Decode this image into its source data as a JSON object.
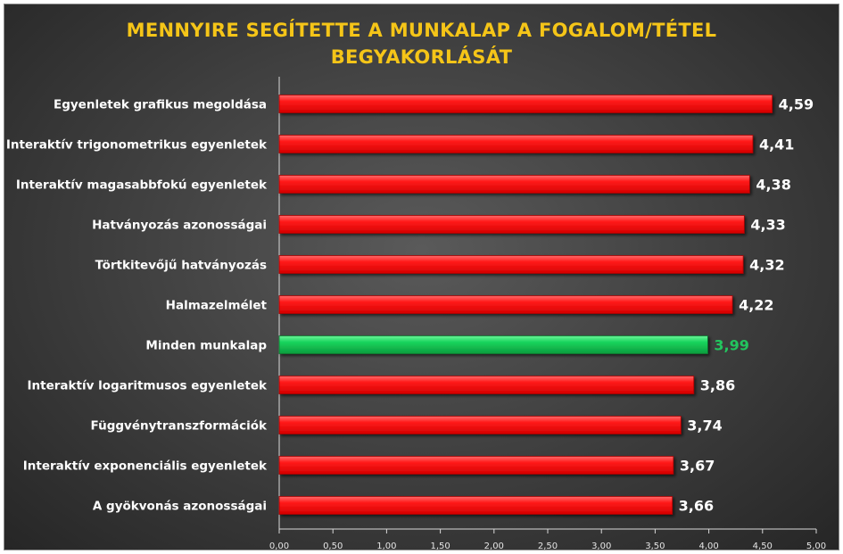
{
  "chart_data": {
    "type": "bar",
    "orientation": "horizontal",
    "title_lines": [
      "MENNYIRE SEGÍTETTE A MUNKALAP A FOGALOM/TÉTEL",
      "BEGYAKORLÁSÁT"
    ],
    "categories": [
      "Egyenletek  grafikus megoldása",
      "Interaktív trigonometrikus egyenletek",
      "Interaktív magasabbfokú egyenletek",
      "Hatványozás azonosságai",
      "Törtkitevőjű hatványozás",
      "Halmazelmélet",
      "Minden munkalap",
      "Interaktív logaritmusos egyenletek",
      "Függvénytranszformációk",
      "Interaktív exponenciális egyenletek",
      "A gyökvonás azonosságai"
    ],
    "values": [
      4.59,
      4.41,
      4.38,
      4.33,
      4.32,
      4.22,
      3.99,
      3.86,
      3.74,
      3.67,
      3.66
    ],
    "value_labels": [
      "4,59",
      "4,41",
      "4,38",
      "4,33",
      "4,32",
      "4,22",
      "3,99",
      "3,86",
      "3,74",
      "3,67",
      "3,66"
    ],
    "highlight_category": "Minden munkalap",
    "xlim": [
      0,
      5
    ],
    "x_ticks": [
      "0,00",
      "0,50",
      "1,00",
      "1,50",
      "2,00",
      "2,50",
      "3,00",
      "3,50",
      "4,00",
      "4,50",
      "5,00"
    ],
    "grid": false,
    "legend": "none",
    "colors": {
      "bar": "#ff0000",
      "bar_highlight": "#00cc44",
      "value_label": "#ffffff",
      "value_label_highlight": "#22c55e",
      "title": "#f5c518"
    }
  }
}
